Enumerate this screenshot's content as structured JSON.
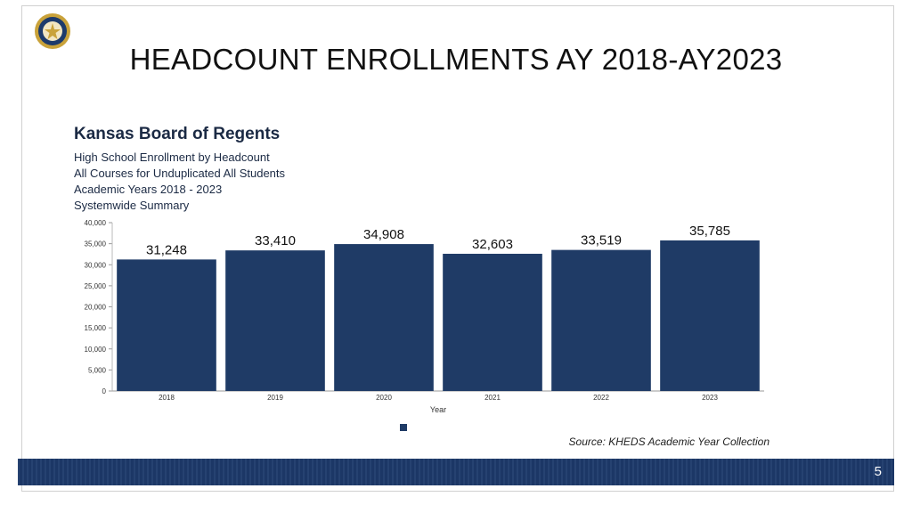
{
  "slide": {
    "title": "HEADCOUNT ENROLLMENTS AY 2018-AY2023",
    "page_number": "5",
    "logo_icon": "kansas-seal-icon",
    "source": "Source: KHEDS Academic Year Collection"
  },
  "chart_header": {
    "org": "Kansas Board of Regents",
    "lines": [
      "High School Enrollment by Headcount",
      "All Courses for Unduplicated All Students",
      "Academic Years 2018 - 2023",
      "Systemwide Summary"
    ]
  },
  "chart_data": {
    "type": "bar",
    "categories": [
      "2018",
      "2019",
      "2020",
      "2021",
      "2022",
      "2023"
    ],
    "values": [
      31248,
      33410,
      34908,
      32603,
      33519,
      35785
    ],
    "value_labels": [
      "31,248",
      "33,410",
      "34,908",
      "32,603",
      "33,519",
      "35,785"
    ],
    "xlabel": "Year",
    "ylabel": "",
    "ylim": [
      0,
      40000
    ],
    "yticks": [
      "0",
      "5,000",
      "10,000",
      "15,000",
      "20,000",
      "25,000",
      "30,000",
      "35,000",
      "40,000"
    ],
    "grid": false,
    "bar_color": "#1f3b66",
    "legend_placement": "bottom-center"
  }
}
